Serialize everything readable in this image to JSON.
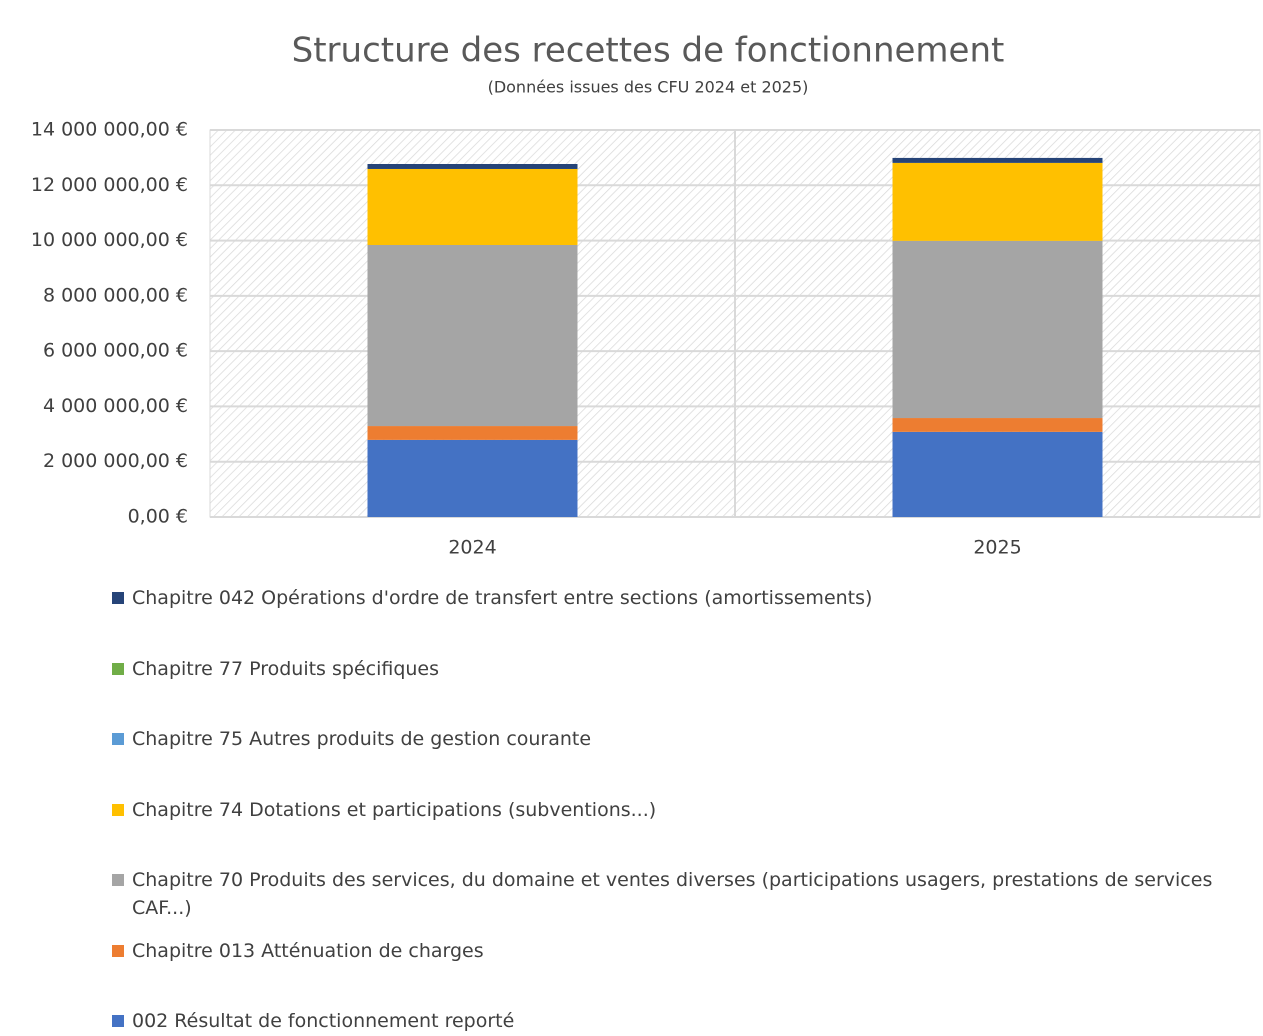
{
  "chart_data": {
    "type": "stacked_bar",
    "title": "Structure des recettes de fonctionnement",
    "subtitle": "(Données issues des CFU 2024 et 2025)",
    "categories": [
      "2024",
      "2025"
    ],
    "series": [
      {
        "name": "002 Résultat de fonctionnement reporté",
        "color": "#4472c4",
        "values": [
          2790000,
          3080000
        ]
      },
      {
        "name": "Chapitre 013 Atténuation de charges",
        "color": "#ed7d31",
        "values": [
          500000,
          500000
        ]
      },
      {
        "name": "Chapitre 70 Produits des services, du domaine et ventes diverses (participations usagers, prestations de services CAF...)",
        "color": "#a5a5a5",
        "values": [
          6550000,
          6410000
        ]
      },
      {
        "name": "Chapitre 74 Dotations et participations (subventions...)",
        "color": "#ffc000",
        "values": [
          2750000,
          2820000
        ]
      },
      {
        "name": "Chapitre 75 Autres produits de gestion courante",
        "color": "#5b9bd5",
        "values": [
          0,
          0
        ]
      },
      {
        "name": "Chapitre 77 Produits spécifiques",
        "color": "#70ad47",
        "values": [
          0,
          0
        ]
      },
      {
        "name": "Chapitre 042 Opérations d'ordre de transfert entre sections (amortissements)",
        "color": "#264478",
        "values": [
          180000,
          180000
        ]
      }
    ],
    "ylim": [
      0,
      14000000
    ],
    "yticks": [
      {
        "value": 0,
        "label": "0,00 €"
      },
      {
        "value": 2000000,
        "label": "2 000 000,00 €"
      },
      {
        "value": 4000000,
        "label": "4 000 000,00 €"
      },
      {
        "value": 6000000,
        "label": "6 000 000,00 €"
      },
      {
        "value": 8000000,
        "label": "8 000 000,00 €"
      },
      {
        "value": 10000000,
        "label": "10 000 000,00 €"
      },
      {
        "value": 12000000,
        "label": "12 000 000,00 €"
      },
      {
        "value": 14000000,
        "label": "14 000 000,00 €"
      }
    ],
    "grid": true
  }
}
